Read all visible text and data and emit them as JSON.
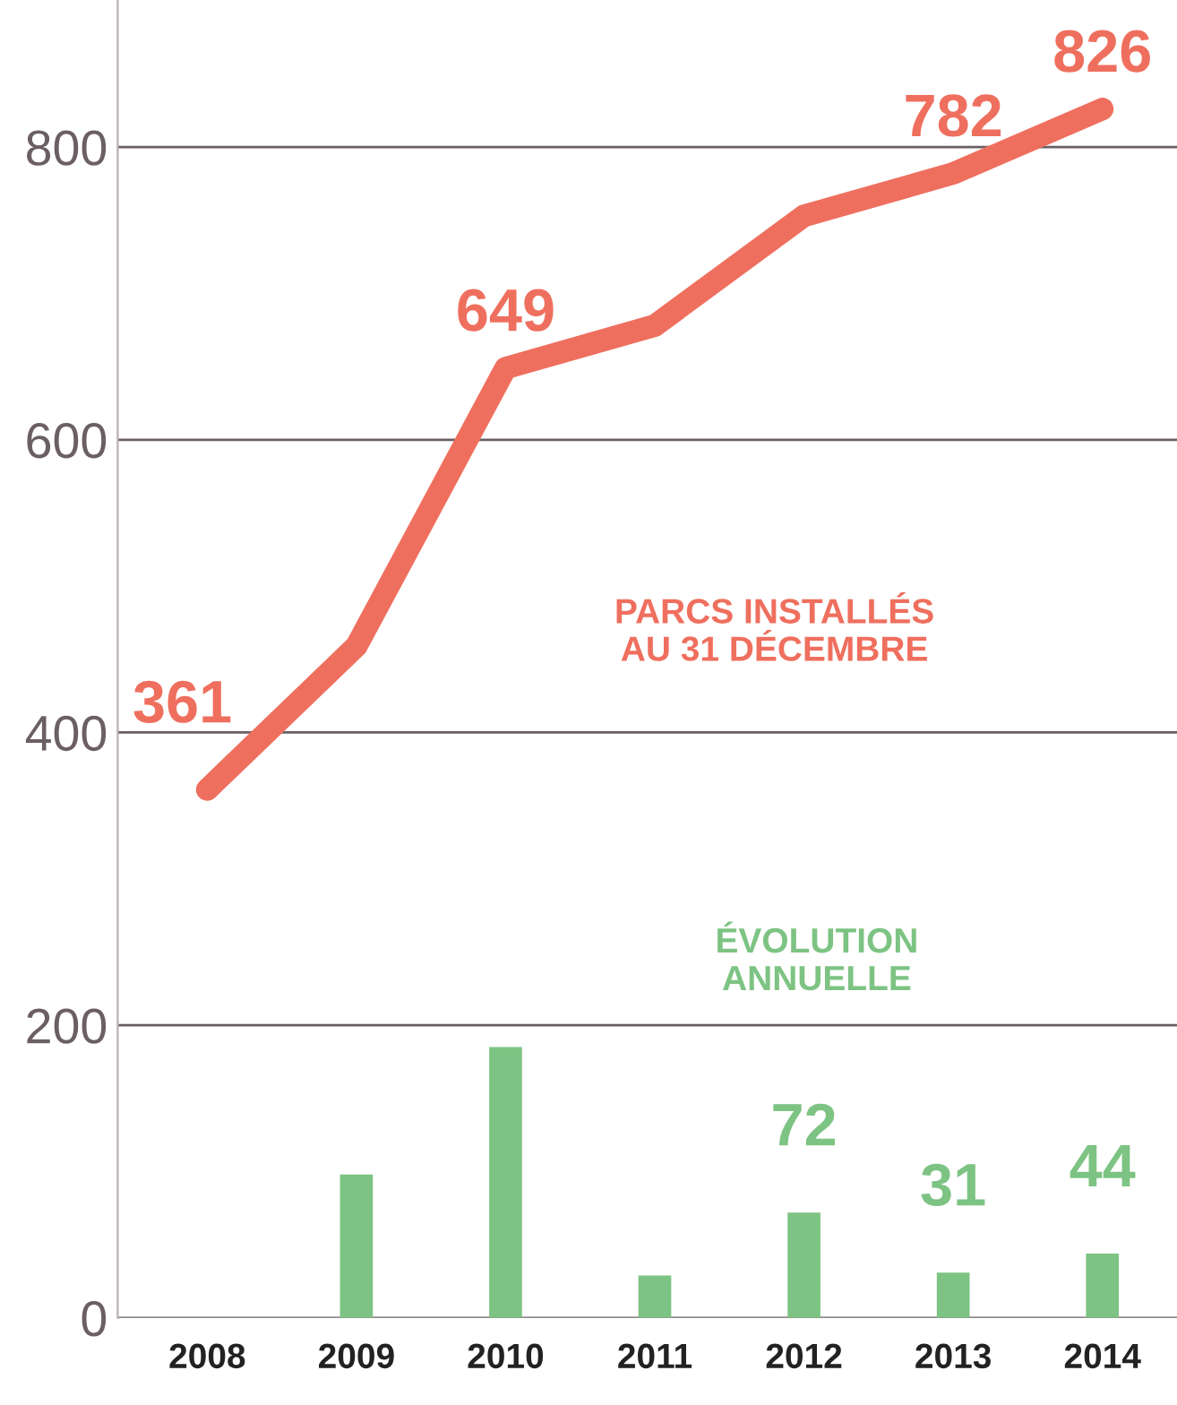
{
  "chart_data": {
    "type": "bar",
    "categories": [
      "2008",
      "2009",
      "2010",
      "2011",
      "2012",
      "2013",
      "2014"
    ],
    "series": [
      {
        "type": "line",
        "color": "#ef6f5e",
        "values": [
          361,
          459,
          649,
          678,
          753,
          782,
          826
        ],
        "value_labels": [
          "361",
          null,
          "649",
          null,
          null,
          "782",
          "826"
        ]
      },
      {
        "color": "#7dc383",
        "values": [
          null,
          98,
          185,
          29,
          72,
          31,
          44
        ],
        "value_labels": [
          null,
          null,
          null,
          null,
          "72",
          "31",
          "44"
        ]
      }
    ],
    "annotations": [
      "PARCS INSTALLÉS\nAU 31 DÉCEMBRE",
      "ÉVOLUTION\nANNUELLE"
    ],
    "ylim": [
      0,
      900
    ],
    "yticks": [
      0,
      200,
      400,
      600,
      800
    ],
    "grid": "y",
    "legend": false
  }
}
